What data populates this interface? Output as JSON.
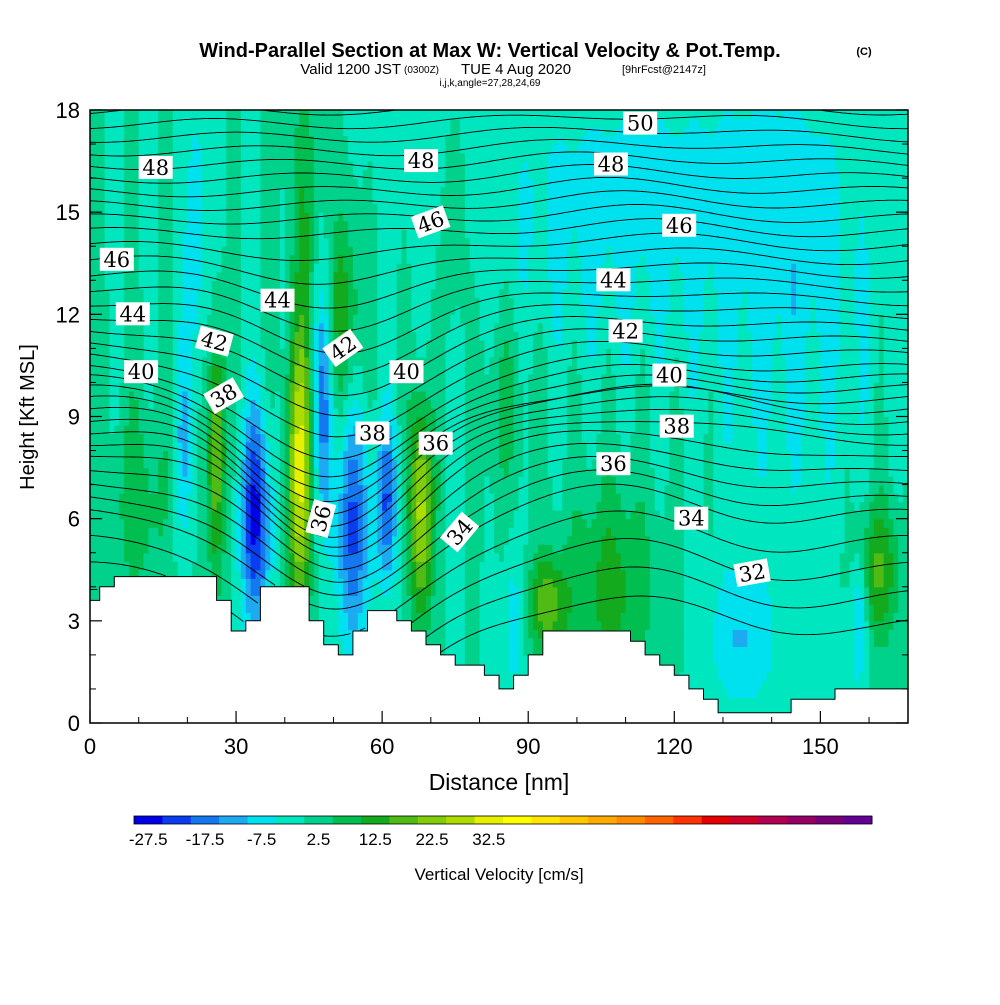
{
  "chart_data": {
    "type": "heatmap",
    "title": "Wind-Parallel Section at Max W: Vertical Velocity & Pot.Temp.",
    "title_mark": "(C)",
    "subtitle": {
      "prefix": "Valid 1200 JST",
      "small": "(0300Z)",
      "main": "TUE 4 Aug 2020",
      "fcst": "[9hrFcst@2147z]"
    },
    "params": "i,j,k,angle=27,28,24,69",
    "xlabel": "Distance [nm]",
    "ylabel": "Height [Kft MSL]",
    "xlim": [
      0,
      168
    ],
    "ylim": [
      0,
      18
    ],
    "x_ticks": [
      0,
      30,
      60,
      90,
      120,
      150
    ],
    "y_ticks": [
      0,
      3,
      6,
      9,
      12,
      15,
      18
    ],
    "grid": false,
    "colorbar": {
      "label": "Vertical Velocity [cm/s]",
      "levels_start": -30,
      "level_step": 5,
      "colors": [
        "#0000e6",
        "#0a3cf0",
        "#1478f0",
        "#1eaaf0",
        "#00e1f0",
        "#00e6be",
        "#00d28c",
        "#00be50",
        "#14aa1e",
        "#50bb14",
        "#82cd0a",
        "#afdc00",
        "#e6f000",
        "#ffff00",
        "#ffe600",
        "#ffc800",
        "#ffaa00",
        "#ff8c00",
        "#ff6400",
        "#ff3200",
        "#e60000",
        "#d20028",
        "#b40050",
        "#960064",
        "#780078",
        "#640096"
      ],
      "tick_labels": [
        "-27.5",
        "-17.5",
        "-7.5",
        "2.5",
        "12.5",
        "22.5",
        "32.5"
      ],
      "tick_values": [
        -27.5,
        -17.5,
        -7.5,
        2.5,
        12.5,
        22.5,
        32.5
      ]
    },
    "terrain_height_kft": [
      [
        0,
        3.6
      ],
      [
        2,
        3.6
      ],
      [
        2,
        4.0
      ],
      [
        5,
        4.0
      ],
      [
        5,
        4.3
      ],
      [
        26,
        4.3
      ],
      [
        26,
        3.6
      ],
      [
        29,
        3.6
      ],
      [
        29,
        2.7
      ],
      [
        32,
        2.7
      ],
      [
        32,
        3.0
      ],
      [
        35,
        3.0
      ],
      [
        35,
        4.0
      ],
      [
        45,
        4.0
      ],
      [
        45,
        3.0
      ],
      [
        48,
        3.0
      ],
      [
        48,
        2.3
      ],
      [
        51,
        2.3
      ],
      [
        51,
        2.0
      ],
      [
        54,
        2.0
      ],
      [
        54,
        2.7
      ],
      [
        57,
        2.7
      ],
      [
        57,
        3.3
      ],
      [
        63,
        3.3
      ],
      [
        63,
        3.0
      ],
      [
        66,
        3.0
      ],
      [
        66,
        2.7
      ],
      [
        69,
        2.7
      ],
      [
        69,
        2.3
      ],
      [
        72,
        2.3
      ],
      [
        72,
        2.0
      ],
      [
        75,
        2.0
      ],
      [
        75,
        1.7
      ],
      [
        81,
        1.7
      ],
      [
        81,
        1.4
      ],
      [
        84,
        1.4
      ],
      [
        84,
        1.0
      ],
      [
        87,
        1.0
      ],
      [
        87,
        1.4
      ],
      [
        90,
        1.4
      ],
      [
        90,
        2.0
      ],
      [
        93,
        2.0
      ],
      [
        93,
        2.7
      ],
      [
        111,
        2.7
      ],
      [
        111,
        2.4
      ],
      [
        114,
        2.4
      ],
      [
        114,
        2.0
      ],
      [
        117,
        2.0
      ],
      [
        117,
        1.7
      ],
      [
        120,
        1.7
      ],
      [
        120,
        1.4
      ],
      [
        123,
        1.4
      ],
      [
        123,
        1.0
      ],
      [
        126,
        1.0
      ],
      [
        126,
        0.7
      ],
      [
        129,
        0.7
      ],
      [
        129,
        0.3
      ],
      [
        144,
        0.3
      ],
      [
        144,
        0.7
      ],
      [
        153,
        0.7
      ],
      [
        153,
        1.0
      ],
      [
        168,
        1.0
      ]
    ],
    "background_w_cms": 0,
    "updrafts": [
      {
        "x": 10,
        "z": 6.5,
        "sx": 4.5,
        "sz": 2.0,
        "w": 8
      },
      {
        "x": 26,
        "z": 8.0,
        "sx": 1.3,
        "sz": 2.6,
        "w": 22
      },
      {
        "x": 43,
        "z": 7.5,
        "sx": 1.8,
        "sz": 3.0,
        "w": 31
      },
      {
        "x": 68,
        "z": 6.3,
        "sx": 1.7,
        "sz": 2.2,
        "w": 28
      },
      {
        "x": 94,
        "z": 3.5,
        "sx": 3.0,
        "sz": 1.0,
        "w": 18
      },
      {
        "x": 107,
        "z": 4.0,
        "sx": 6.0,
        "sz": 2.2,
        "w": 12
      },
      {
        "x": 162,
        "z": 4.5,
        "sx": 3.0,
        "sz": 1.5,
        "w": 16
      },
      {
        "x": 52,
        "z": 12.0,
        "sx": 2.5,
        "sz": 2.0,
        "w": 14
      },
      {
        "x": 44,
        "z": 15.5,
        "sx": 2.0,
        "sz": 2.5,
        "w": 9
      },
      {
        "x": 75,
        "z": 14.5,
        "sx": 1.5,
        "sz": 2.0,
        "w": 8
      },
      {
        "x": 85,
        "z": 9.5,
        "sx": 4.0,
        "sz": 2.0,
        "w": 6
      }
    ],
    "downdrafts": [
      {
        "x": 34,
        "z": 6.0,
        "sx": 2.2,
        "sz": 2.2,
        "w": -26
      },
      {
        "x": 54,
        "z": 5.7,
        "sx": 2.5,
        "sz": 2.5,
        "w": -20
      },
      {
        "x": 61,
        "z": 6.5,
        "sx": 1.6,
        "sz": 1.6,
        "w": -19
      },
      {
        "x": 48,
        "z": 9.5,
        "sx": 1.5,
        "sz": 2.5,
        "w": -17
      },
      {
        "x": 19,
        "z": 8.0,
        "sx": 1.4,
        "sz": 2.0,
        "w": -9
      },
      {
        "x": 87,
        "z": 3.0,
        "sx": 1.5,
        "sz": 1.5,
        "w": -9
      },
      {
        "x": 134,
        "z": 2.5,
        "sx": 5.0,
        "sz": 1.5,
        "w": -10
      },
      {
        "x": 158,
        "z": 3.0,
        "sx": 1.2,
        "sz": 1.3,
        "w": -13
      },
      {
        "x": 22,
        "z": 14.0,
        "sx": 2.0,
        "sz": 3.5,
        "w": -8
      },
      {
        "x": 110,
        "z": 15.0,
        "sx": 25.0,
        "sz": 3.0,
        "w": -7
      },
      {
        "x": 145,
        "z": 12.5,
        "sx": 12.0,
        "sz": 5.0,
        "w": -6
      }
    ],
    "isentrope_levels": [
      32,
      34,
      36,
      38,
      40,
      42,
      44,
      46,
      48,
      50
    ],
    "isentrope_labels": [
      {
        "text": "48",
        "x": 13.5,
        "z": 16.3,
        "angle": 0
      },
      {
        "text": "46",
        "x": 5.5,
        "z": 13.6,
        "angle": 0
      },
      {
        "text": "44",
        "x": 8.8,
        "z": 12.0,
        "angle": 0
      },
      {
        "text": "42",
        "x": 25.5,
        "z": 11.2,
        "angle": 15
      },
      {
        "text": "40",
        "x": 10.5,
        "z": 10.3,
        "angle": 0
      },
      {
        "text": "38",
        "x": 27.5,
        "z": 9.6,
        "angle": -30
      },
      {
        "text": "44",
        "x": 38.5,
        "z": 12.4,
        "angle": 0
      },
      {
        "text": "42",
        "x": 52.0,
        "z": 11.0,
        "angle": -35
      },
      {
        "text": "36",
        "x": 47.5,
        "z": 6.0,
        "angle": -75
      },
      {
        "text": "38",
        "x": 58.0,
        "z": 8.5,
        "angle": 0
      },
      {
        "text": "40",
        "x": 65.0,
        "z": 10.3,
        "angle": 0
      },
      {
        "text": "48",
        "x": 68.0,
        "z": 16.5,
        "angle": 0
      },
      {
        "text": "46",
        "x": 70.0,
        "z": 14.7,
        "angle": -20
      },
      {
        "text": "36",
        "x": 71.0,
        "z": 8.2,
        "angle": 0
      },
      {
        "text": "34",
        "x": 76.0,
        "z": 5.6,
        "angle": -50
      },
      {
        "text": "50",
        "x": 113.0,
        "z": 17.6,
        "angle": 0
      },
      {
        "text": "48",
        "x": 107.0,
        "z": 16.4,
        "angle": 0
      },
      {
        "text": "46",
        "x": 121.0,
        "z": 14.6,
        "angle": 0
      },
      {
        "text": "44",
        "x": 107.5,
        "z": 13.0,
        "angle": 0
      },
      {
        "text": "42",
        "x": 110.0,
        "z": 11.5,
        "angle": 0
      },
      {
        "text": "40",
        "x": 119.0,
        "z": 10.2,
        "angle": 0
      },
      {
        "text": "38",
        "x": 120.5,
        "z": 8.7,
        "angle": 0
      },
      {
        "text": "36",
        "x": 107.5,
        "z": 7.6,
        "angle": 0
      },
      {
        "text": "34",
        "x": 123.5,
        "z": 6.0,
        "angle": 0
      },
      {
        "text": "32",
        "x": 136.0,
        "z": 4.4,
        "angle": -10
      }
    ]
  },
  "colors": {
    "terrain": "#ffffff",
    "isentrope": "#000000",
    "label_box": "#ffffff"
  }
}
